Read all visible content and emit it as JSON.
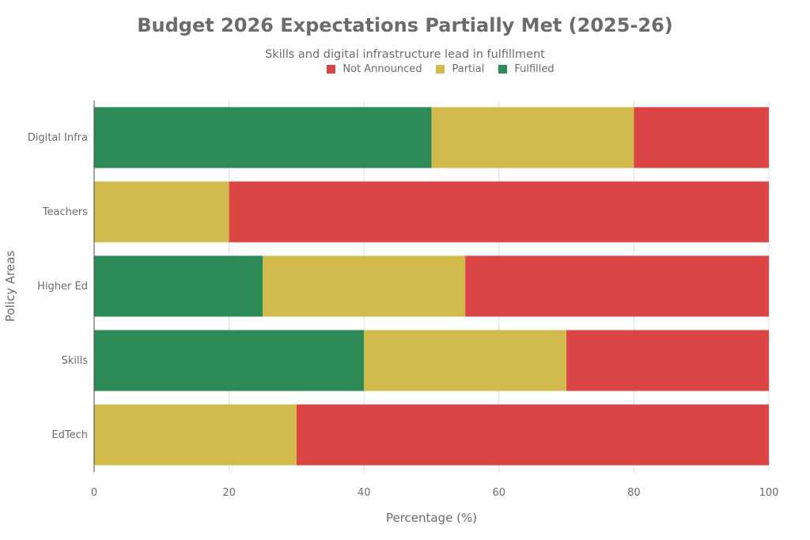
{
  "chart_data": {
    "type": "bar",
    "orientation": "horizontal",
    "stacked": true,
    "title": "Budget 2026 Expectations Partially Met (2025-26)",
    "subtitle": "Skills and digital infrastructure lead in fulfillment",
    "xlabel": "Percentage (%)",
    "ylabel": "Policy Areas",
    "xlim": [
      0,
      100
    ],
    "xticks": [
      "0",
      "20",
      "40",
      "60",
      "80",
      "100"
    ],
    "grid": true,
    "legend_position": "top-center",
    "categories": [
      "Digital Infra",
      "Teachers",
      "Higher Ed",
      "Skills",
      "EdTech"
    ],
    "series": [
      {
        "name": "Fulfilled",
        "color": "#2E8B57",
        "values": [
          50,
          0,
          25,
          40,
          0
        ]
      },
      {
        "name": "Partial",
        "color": "#D2BA4C",
        "values": [
          30,
          20,
          30,
          30,
          30
        ]
      },
      {
        "name": "Not Announced",
        "color": "#DB4545",
        "values": [
          20,
          80,
          45,
          30,
          70
        ]
      }
    ],
    "legend_order": [
      "Not Announced",
      "Partial",
      "Fulfilled"
    ]
  }
}
